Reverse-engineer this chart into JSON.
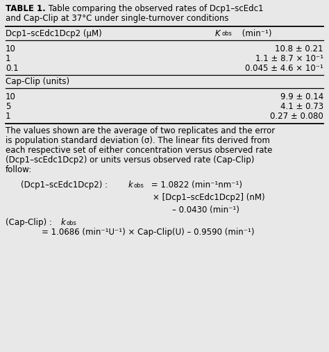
{
  "title_bold": "TABLE 1.",
  "title_rest": " Table comparing the observed rates of Dcp1–scEdc1\nand Cap-Clip at 37°C under single-turnover conditions",
  "col1_header": "Dcp1–scEdc1Dcp2 (μM)",
  "section1_rows": [
    [
      "10",
      "10.8 ± 0.21"
    ],
    [
      "1",
      "1.1 ± 8.7 × 10⁻¹"
    ],
    [
      "0.1",
      "0.045 ± 4.6 × 10⁻¹"
    ]
  ],
  "section2_header": "Cap-Clip (units)",
  "section2_rows": [
    [
      "10",
      "9.9 ± 0.14"
    ],
    [
      "5",
      "4.1 ± 0.73"
    ],
    [
      "1",
      "0.27 ± 0.080"
    ]
  ],
  "background_color": "#e8e8e8",
  "text_color": "#000000",
  "font_size": 8.5,
  "line_color": "#000000",
  "footer_lines": [
    "The values shown are the average of two replicates and the error",
    "is population standard deviation (σ). The linear fits derived from",
    "each respective set of either concentration versus observed rate",
    "(Dcp1–scEdc1Dcp2) or units versus observed rate (Cap-Clip)",
    "follow:"
  ]
}
